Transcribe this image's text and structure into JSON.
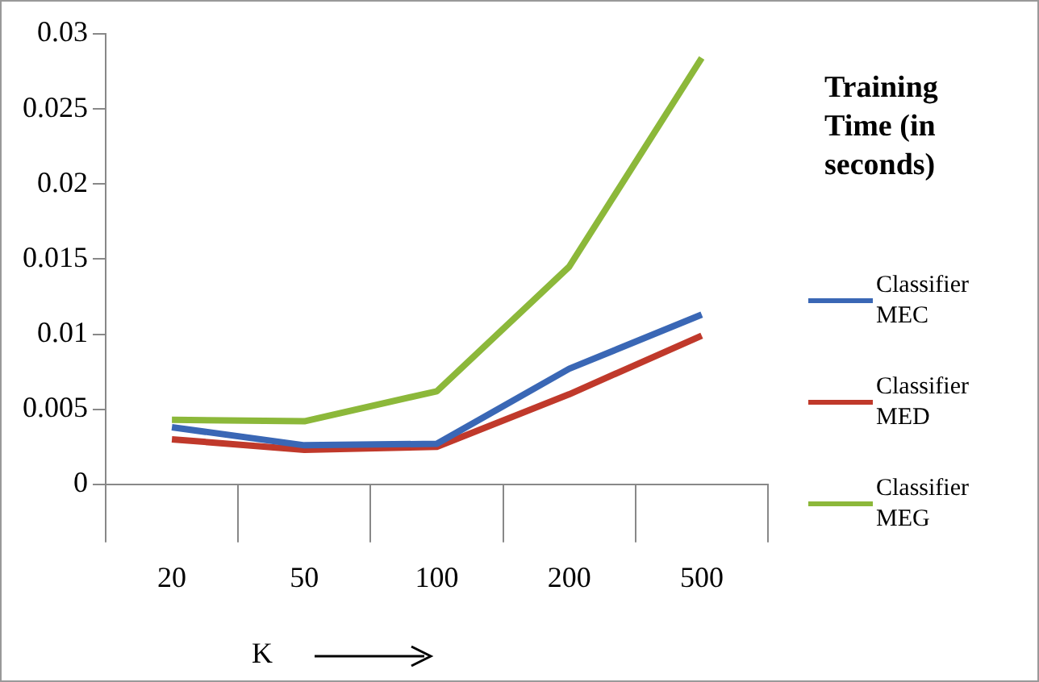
{
  "chart_data": {
    "type": "line",
    "xlabel": "K",
    "legend_title": "Training Time (in seconds)",
    "categories": [
      "20",
      "50",
      "100",
      "200",
      "500"
    ],
    "series": [
      {
        "name": "Classifier MEC",
        "color": "#3a67b5",
        "values": [
          0.0038,
          0.0026,
          0.0027,
          0.0077,
          0.0113
        ]
      },
      {
        "name": "Classifier MED",
        "color": "#c0392b",
        "values": [
          0.003,
          0.0023,
          0.0025,
          0.006,
          0.0099
        ]
      },
      {
        "name": "Classifier MEG",
        "color": "#8cb83a",
        "values": [
          0.0043,
          0.0042,
          0.0062,
          0.0145,
          0.0284
        ]
      }
    ],
    "ylim": [
      0,
      0.03
    ],
    "yticks": [
      0,
      0.005,
      0.01,
      0.015,
      0.02,
      0.025,
      0.03
    ],
    "grid": false,
    "legend": "right",
    "marker": "none",
    "line_style": "solid"
  }
}
